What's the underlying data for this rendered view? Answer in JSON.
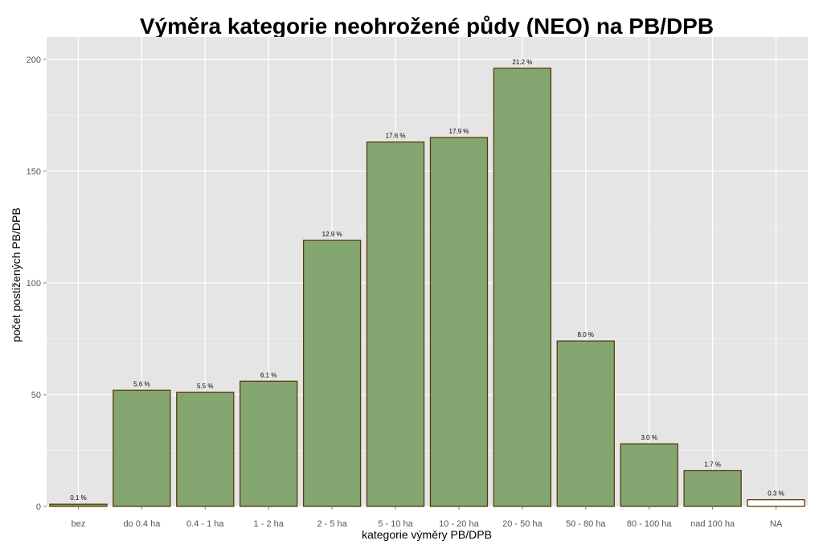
{
  "chart_data": {
    "type": "bar",
    "title": "Výměra kategorie neohrožené půdy (NEO) na PB/DPB",
    "xlabel": "kategorie výměry PB/DPB",
    "ylabel": "počet postižených PB/DPB",
    "ylim": [
      0,
      210
    ],
    "yticks": [
      0,
      50,
      100,
      150,
      200
    ],
    "grid": true,
    "categories": [
      "bez",
      "do 0.4 ha",
      "0.4 - 1 ha",
      "1 - 2 ha",
      "2 - 5 ha",
      "5 - 10 ha",
      "10 - 20 ha",
      "20 - 50 ha",
      "50 - 80 ha",
      "80 - 100 ha",
      "nad 100 ha",
      "NA"
    ],
    "values": [
      1,
      52,
      51,
      56,
      119,
      163,
      165,
      196,
      74,
      28,
      16,
      3
    ],
    "labels": [
      "0.1 %",
      "5.6 %",
      "5.5 %",
      "6.1 %",
      "12.9 %",
      "17.6 %",
      "17.9 %",
      "21.2 %",
      "8.0 %",
      "3.0 %",
      "1.7 %",
      "0.3 %"
    ],
    "colors": {
      "panel": "#e5e5e5",
      "grid": "#ffffff",
      "bar_fill": "#84a671",
      "bar_fill_na": "#ffffff",
      "bar_stroke": "#5c3a0a"
    }
  }
}
